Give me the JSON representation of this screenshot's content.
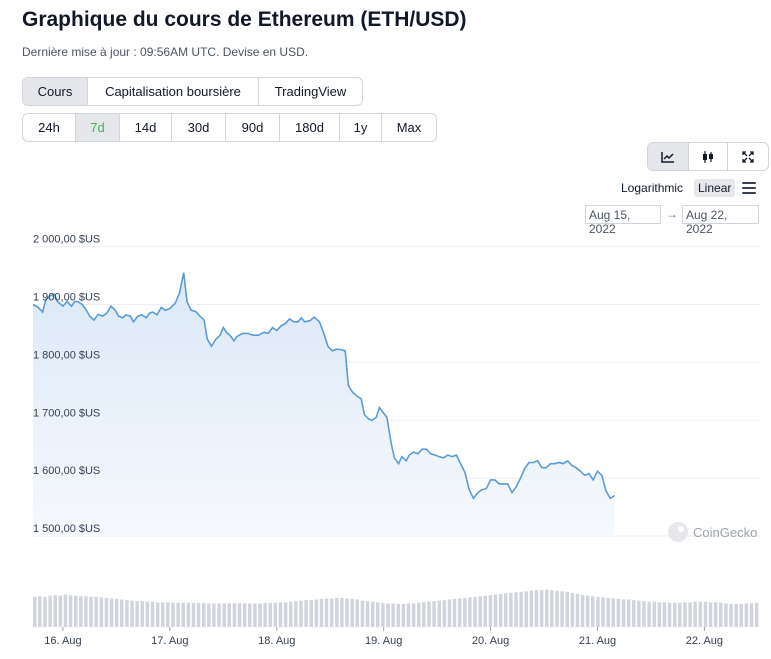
{
  "page": {
    "title": "Graphique du cours de Ethereum (ETH/USD)",
    "subtitle": "Dernière mise à jour : 09:56AM UTC. Devise en USD."
  },
  "tabs": [
    {
      "label": "Cours",
      "active": true
    },
    {
      "label": "Capitalisation boursière",
      "active": false
    },
    {
      "label": "TradingView",
      "active": false
    }
  ],
  "ranges": [
    {
      "label": "24h",
      "active": false
    },
    {
      "label": "7d",
      "active": true
    },
    {
      "label": "14d",
      "active": false
    },
    {
      "label": "30d",
      "active": false
    },
    {
      "label": "90d",
      "active": false
    },
    {
      "label": "180d",
      "active": false
    },
    {
      "label": "1y",
      "active": false
    },
    {
      "label": "Max",
      "active": false
    }
  ],
  "chart_types": [
    {
      "icon": "line-chart-icon",
      "active": true
    },
    {
      "icon": "candlestick-icon",
      "active": false
    },
    {
      "icon": "expand-icon",
      "active": false
    }
  ],
  "scale": {
    "log_label": "Logarithmic",
    "linear_label": "Linear",
    "selected": "Linear"
  },
  "date_range": {
    "from": "Aug 15, 2022",
    "arrow": "→",
    "to": "Aug 22, 2022"
  },
  "watermark": "CoinGecko",
  "colors": {
    "line": "#5b9bd5",
    "fill": "#eaf2fb",
    "volume": "#d1d5db",
    "active_range": "#4caf50"
  },
  "chart_data": {
    "type": "area",
    "title": "",
    "xlabel": "",
    "ylabel": "",
    "ylim": [
      1450,
      2020
    ],
    "yticks": [
      2000,
      1900,
      1800,
      1700,
      1600,
      1500
    ],
    "ytick_labels": [
      "2 000,00 $US",
      "1 900,00 $US",
      "1 800,00 $US",
      "1 700,00 $US",
      "1 600,00 $US",
      "1 500,00 $US"
    ],
    "xlim": [
      15.72,
      22.52
    ],
    "xticks": [
      16,
      17,
      18,
      19,
      20,
      21,
      22
    ],
    "xtick_labels": [
      "16. Aug",
      "17. Aug",
      "18. Aug",
      "19. Aug",
      "20. Aug",
      "21. Aug",
      "22. Aug"
    ],
    "grid": true,
    "legend": "none",
    "series": [
      {
        "values": [
          [
            15.72,
            1900
          ],
          [
            15.77,
            1895
          ],
          [
            15.81,
            1887
          ],
          [
            15.84,
            1908
          ],
          [
            15.88,
            1915
          ],
          [
            15.92,
            1918
          ],
          [
            15.95,
            1905
          ],
          [
            16.0,
            1897
          ],
          [
            16.04,
            1905
          ],
          [
            16.08,
            1897
          ],
          [
            16.11,
            1905
          ],
          [
            16.14,
            1905
          ],
          [
            16.18,
            1900
          ],
          [
            16.22,
            1890
          ],
          [
            16.25,
            1880
          ],
          [
            16.29,
            1873
          ],
          [
            16.33,
            1883
          ],
          [
            16.37,
            1880
          ],
          [
            16.41,
            1885
          ],
          [
            16.45,
            1897
          ],
          [
            16.49,
            1890
          ],
          [
            16.52,
            1880
          ],
          [
            16.56,
            1877
          ],
          [
            16.59,
            1882
          ],
          [
            16.63,
            1880
          ],
          [
            16.66,
            1870
          ],
          [
            16.7,
            1880
          ],
          [
            16.74,
            1882
          ],
          [
            16.78,
            1877
          ],
          [
            16.81,
            1885
          ],
          [
            16.84,
            1887
          ],
          [
            16.88,
            1882
          ],
          [
            16.92,
            1895
          ],
          [
            16.96,
            1890
          ],
          [
            17.0,
            1893
          ],
          [
            17.05,
            1902
          ],
          [
            17.09,
            1920
          ],
          [
            17.13,
            1955
          ],
          [
            17.16,
            1905
          ],
          [
            17.2,
            1890
          ],
          [
            17.24,
            1888
          ],
          [
            17.28,
            1880
          ],
          [
            17.32,
            1873
          ],
          [
            17.35,
            1840
          ],
          [
            17.39,
            1828
          ],
          [
            17.43,
            1840
          ],
          [
            17.47,
            1847
          ],
          [
            17.5,
            1860
          ],
          [
            17.53,
            1852
          ],
          [
            17.57,
            1845
          ],
          [
            17.6,
            1837
          ],
          [
            17.63,
            1845
          ],
          [
            17.68,
            1850
          ],
          [
            17.73,
            1850
          ],
          [
            17.78,
            1847
          ],
          [
            17.83,
            1847
          ],
          [
            17.88,
            1852
          ],
          [
            17.92,
            1850
          ],
          [
            17.96,
            1860
          ],
          [
            18.0,
            1855
          ],
          [
            18.04,
            1863
          ],
          [
            18.08,
            1867
          ],
          [
            18.12,
            1875
          ],
          [
            18.16,
            1870
          ],
          [
            18.2,
            1870
          ],
          [
            18.23,
            1877
          ],
          [
            18.26,
            1870
          ],
          [
            18.31,
            1872
          ],
          [
            18.35,
            1878
          ],
          [
            18.4,
            1870
          ],
          [
            18.44,
            1850
          ],
          [
            18.48,
            1827
          ],
          [
            18.52,
            1820
          ],
          [
            18.56,
            1823
          ],
          [
            18.6,
            1822
          ],
          [
            18.64,
            1820
          ],
          [
            18.67,
            1760
          ],
          [
            18.71,
            1748
          ],
          [
            18.75,
            1742
          ],
          [
            18.79,
            1737
          ],
          [
            18.82,
            1710
          ],
          [
            18.86,
            1702
          ],
          [
            18.89,
            1700
          ],
          [
            18.93,
            1705
          ],
          [
            18.96,
            1722
          ],
          [
            19.0,
            1712
          ],
          [
            19.03,
            1705
          ],
          [
            19.07,
            1660
          ],
          [
            19.1,
            1635
          ],
          [
            19.14,
            1625
          ],
          [
            19.17,
            1637
          ],
          [
            19.21,
            1630
          ],
          [
            19.24,
            1640
          ],
          [
            19.28,
            1645
          ],
          [
            19.32,
            1642
          ],
          [
            19.36,
            1650
          ],
          [
            19.4,
            1650
          ],
          [
            19.44,
            1642
          ],
          [
            19.48,
            1640
          ],
          [
            19.52,
            1637
          ],
          [
            19.56,
            1635
          ],
          [
            19.6,
            1640
          ],
          [
            19.64,
            1637
          ],
          [
            19.68,
            1640
          ],
          [
            19.72,
            1625
          ],
          [
            19.76,
            1610
          ],
          [
            19.8,
            1580
          ],
          [
            19.84,
            1565
          ],
          [
            19.88,
            1575
          ],
          [
            19.92,
            1580
          ],
          [
            19.96,
            1582
          ],
          [
            20.0,
            1597
          ],
          [
            20.04,
            1597
          ],
          [
            20.08,
            1590
          ],
          [
            20.12,
            1590
          ],
          [
            20.16,
            1590
          ],
          [
            20.2,
            1575
          ],
          [
            20.24,
            1585
          ],
          [
            20.28,
            1600
          ],
          [
            20.32,
            1617
          ],
          [
            20.36,
            1627
          ],
          [
            20.4,
            1627
          ],
          [
            20.44,
            1630
          ],
          [
            20.48,
            1618
          ],
          [
            20.52,
            1618
          ],
          [
            20.56,
            1625
          ],
          [
            20.6,
            1625
          ],
          [
            20.64,
            1627
          ],
          [
            20.68,
            1625
          ],
          [
            20.72,
            1630
          ],
          [
            20.76,
            1622
          ],
          [
            20.8,
            1618
          ],
          [
            20.84,
            1612
          ],
          [
            20.88,
            1605
          ],
          [
            20.92,
            1608
          ],
          [
            20.96,
            1597
          ],
          [
            21.0,
            1612
          ],
          [
            21.04,
            1605
          ],
          [
            21.08,
            1578
          ],
          [
            21.12,
            1565
          ],
          [
            21.16,
            1570
          ]
        ]
      }
    ],
    "volume": [
      0.55,
      0.56,
      0.55,
      0.57,
      0.58,
      0.57,
      0.59,
      0.58,
      0.57,
      0.56,
      0.56,
      0.55,
      0.55,
      0.54,
      0.53,
      0.52,
      0.51,
      0.5,
      0.49,
      0.48,
      0.47,
      0.47,
      0.46,
      0.46,
      0.45,
      0.45,
      0.45,
      0.44,
      0.44,
      0.44,
      0.44,
      0.44,
      0.44,
      0.44,
      0.43,
      0.43,
      0.43,
      0.43,
      0.43,
      0.43,
      0.43,
      0.43,
      0.43,
      0.43,
      0.43,
      0.44,
      0.44,
      0.44,
      0.45,
      0.45,
      0.46,
      0.47,
      0.48,
      0.49,
      0.49,
      0.5,
      0.51,
      0.52,
      0.52,
      0.53,
      0.53,
      0.52,
      0.51,
      0.5,
      0.48,
      0.47,
      0.46,
      0.45,
      0.44,
      0.43,
      0.43,
      0.42,
      0.42,
      0.43,
      0.43,
      0.44,
      0.45,
      0.46,
      0.47,
      0.48,
      0.49,
      0.5,
      0.51,
      0.52,
      0.53,
      0.54,
      0.55,
      0.56,
      0.57,
      0.58,
      0.59,
      0.6,
      0.61,
      0.62,
      0.63,
      0.64,
      0.65,
      0.66,
      0.67,
      0.67,
      0.68,
      0.67,
      0.66,
      0.65,
      0.64,
      0.62,
      0.6,
      0.58,
      0.57,
      0.56,
      0.55,
      0.54,
      0.53,
      0.52,
      0.51,
      0.5,
      0.5,
      0.49,
      0.48,
      0.47,
      0.46,
      0.46,
      0.45,
      0.45,
      0.44,
      0.44,
      0.44,
      0.45,
      0.45,
      0.46,
      0.46,
      0.46,
      0.45,
      0.45,
      0.44,
      0.43,
      0.42,
      0.42,
      0.42,
      0.43,
      0.43,
      0.44
    ]
  }
}
